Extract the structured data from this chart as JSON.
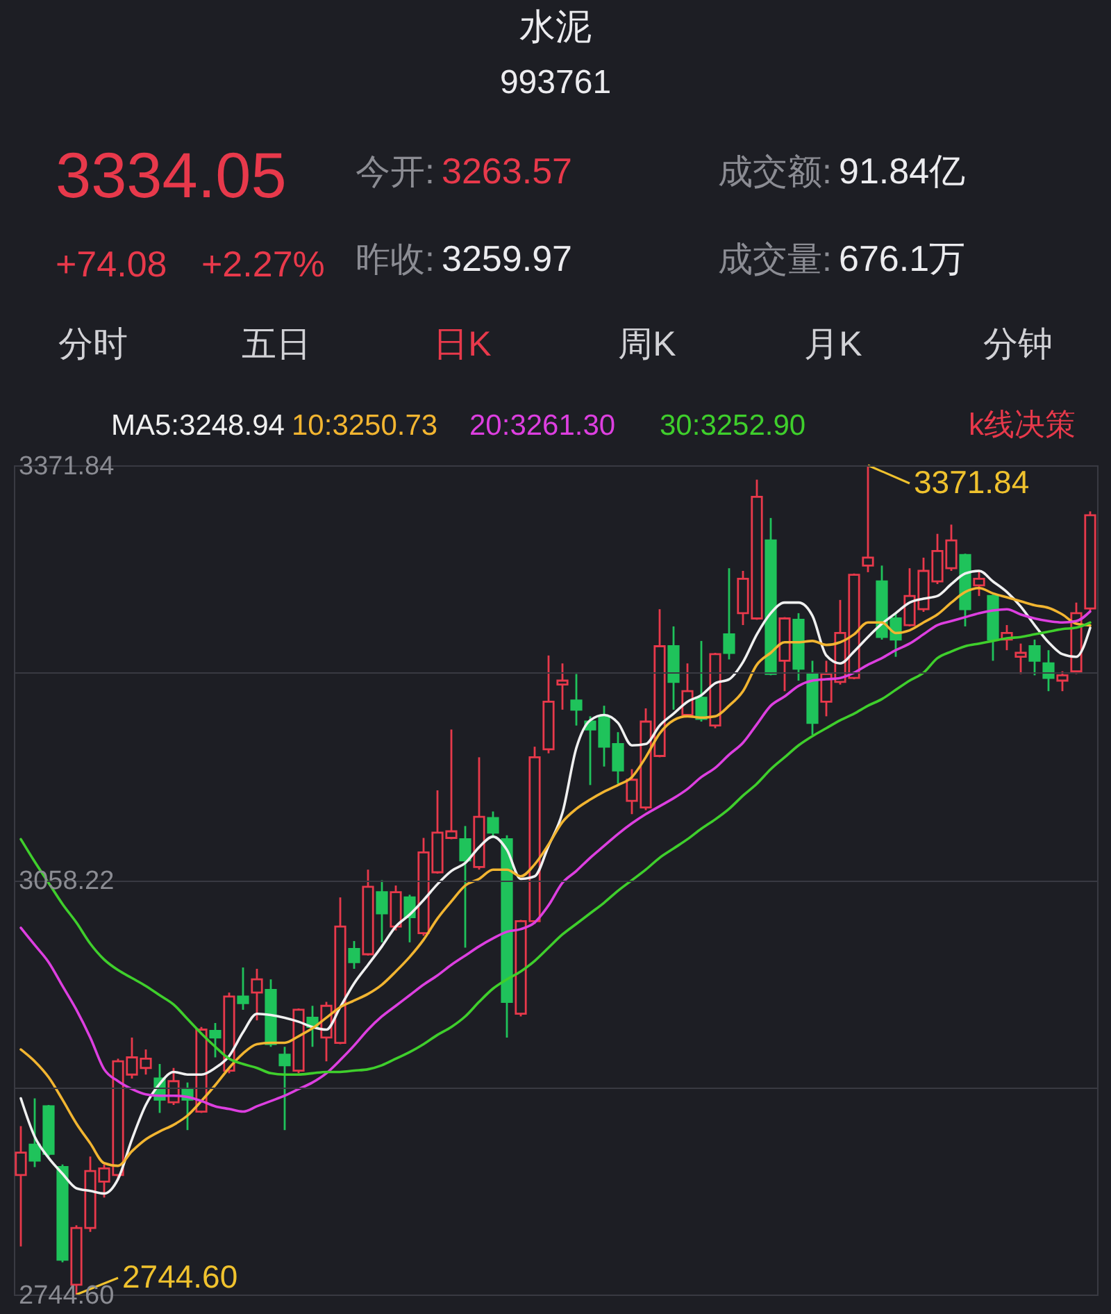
{
  "chart_data": {
    "type": "candlestick",
    "title": "水泥",
    "subtitle": "993761",
    "categories": [
      null,
      null,
      null,
      null,
      null,
      null,
      null,
      null,
      null,
      null,
      null,
      null,
      null,
      null,
      null,
      null,
      null,
      null,
      null,
      null,
      null,
      null,
      null,
      null,
      null,
      null,
      null,
      null,
      null,
      null,
      null,
      null,
      null,
      null,
      null,
      null,
      null,
      null,
      null,
      null,
      null,
      null,
      null,
      null,
      null,
      null,
      null,
      null,
      null,
      null,
      null,
      null,
      null,
      null,
      null,
      null,
      null,
      null,
      null,
      null,
      null,
      null,
      null,
      null,
      null,
      null,
      null,
      null,
      null,
      null,
      null,
      null,
      null,
      null,
      null,
      null,
      null,
      null
    ],
    "ohlc": [
      [
        2835,
        2872,
        2781,
        2852
      ],
      [
        2858,
        2893,
        2841,
        2846
      ],
      [
        2887,
        2888,
        2849,
        2851
      ],
      [
        2841,
        2843,
        2769,
        2771
      ],
      [
        2752,
        2797,
        2744.6,
        2795
      ],
      [
        2795,
        2849,
        2792,
        2838
      ],
      [
        2830,
        2843,
        2818,
        2840
      ],
      [
        2835,
        2923,
        2831,
        2921
      ],
      [
        2911,
        2939,
        2908,
        2924
      ],
      [
        2916,
        2930,
        2911,
        2923
      ],
      [
        2908,
        2919,
        2882,
        2892
      ],
      [
        2890,
        2916,
        2888,
        2906
      ],
      [
        2900,
        2905,
        2869,
        2892
      ],
      [
        2883,
        2947,
        2882,
        2945
      ],
      [
        2944,
        2950,
        2924,
        2939
      ],
      [
        2914,
        2973,
        2912,
        2970
      ],
      [
        2970,
        2992,
        2960,
        2965
      ],
      [
        2973,
        2991,
        2952,
        2983
      ],
      [
        2975,
        2983,
        2932,
        2934
      ],
      [
        2926,
        2932,
        2869,
        2918
      ],
      [
        2914,
        2961,
        2912,
        2960
      ],
      [
        2954,
        2963,
        2932,
        2947
      ],
      [
        2939,
        2966,
        2921,
        2963
      ],
      [
        2935,
        3045,
        2934,
        3023
      ],
      [
        3006,
        3012,
        2991,
        2996
      ],
      [
        3002,
        3066,
        3001,
        3053
      ],
      [
        3049,
        3058,
        3011,
        3033
      ],
      [
        3023,
        3054,
        3020,
        3049
      ],
      [
        3045,
        3047,
        3011,
        3030
      ],
      [
        3018,
        3090,
        3016,
        3079
      ],
      [
        3064,
        3126,
        3063,
        3094
      ],
      [
        3090,
        3172,
        3089,
        3095
      ],
      [
        3089,
        3099,
        3007,
        3073
      ],
      [
        3068,
        3151,
        3066,
        3106
      ],
      [
        3105,
        3110,
        3090,
        3094
      ],
      [
        3089,
        3092,
        2939,
        2966
      ],
      [
        2957,
        3028,
        2955,
        3027
      ],
      [
        3027,
        3159,
        3025,
        3151
      ],
      [
        3157,
        3228,
        3154,
        3193
      ],
      [
        3206,
        3222,
        3187,
        3209
      ],
      [
        3194,
        3214,
        3175,
        3187
      ],
      [
        3178,
        3182,
        3130,
        3172
      ],
      [
        3182,
        3190,
        3144,
        3159
      ],
      [
        3161,
        3170,
        3131,
        3141
      ],
      [
        3118,
        3142,
        3108,
        3134
      ],
      [
        3113,
        3188,
        3111,
        3178
      ],
      [
        3152,
        3263,
        3151,
        3235
      ],
      [
        3235,
        3250,
        3187,
        3208
      ],
      [
        3183,
        3222,
        3182,
        3201
      ],
      [
        3196,
        3239,
        3178,
        3180
      ],
      [
        3175,
        3230,
        3173,
        3229
      ],
      [
        3244,
        3294,
        3225,
        3230
      ],
      [
        3260,
        3292,
        3251,
        3286
      ],
      [
        3256,
        3361,
        3255,
        3348
      ],
      [
        3315,
        3332,
        3213,
        3214
      ],
      [
        3224,
        3257,
        3201,
        3256
      ],
      [
        3255,
        3260,
        3209,
        3218
      ],
      [
        3214,
        3224,
        3168,
        3177
      ],
      [
        3193,
        3224,
        3182,
        3214
      ],
      [
        3208,
        3270,
        3206,
        3245
      ],
      [
        3211,
        3290,
        3210,
        3289
      ],
      [
        3296,
        3371.84,
        3291,
        3302
      ],
      [
        3284,
        3296,
        3240,
        3242
      ],
      [
        3256,
        3260,
        3227,
        3240
      ],
      [
        3251,
        3294,
        3250,
        3273
      ],
      [
        3263,
        3302,
        3261,
        3292
      ],
      [
        3284,
        3320,
        3282,
        3307
      ],
      [
        3294,
        3327,
        3292,
        3315
      ],
      [
        3304,
        3305,
        3250,
        3263
      ],
      [
        3281,
        3292,
        3273,
        3286
      ],
      [
        3273,
        3274,
        3224,
        3240
      ],
      [
        3240,
        3251,
        3232,
        3245
      ],
      [
        3227,
        3237,
        3214,
        3230
      ],
      [
        3235,
        3240,
        3213,
        3224
      ],
      [
        3222,
        3232,
        3201,
        3211
      ],
      [
        3209,
        3216,
        3201,
        3213
      ],
      [
        3216,
        3268,
        3214,
        3260
      ],
      [
        3263.57,
        3337,
        3262,
        3334.05
      ]
    ],
    "colors": [
      "#e8394b",
      "#1fc35b",
      "#1fc35b",
      "#1fc35b",
      "#e8394b",
      "#e8394b",
      "#e8394b",
      "#e8394b",
      "#e8394b",
      "#e8394b",
      "#1fc35b",
      "#e8394b",
      "#1fc35b",
      "#e8394b",
      "#1fc35b",
      "#e8394b",
      "#1fc35b",
      "#e8394b",
      "#1fc35b",
      "#1fc35b",
      "#e8394b",
      "#1fc35b",
      "#e8394b",
      "#e8394b",
      "#1fc35b",
      "#e8394b",
      "#1fc35b",
      "#e8394b",
      "#1fc35b",
      "#e8394b",
      "#e8394b",
      "#e8394b",
      "#1fc35b",
      "#e8394b",
      "#1fc35b",
      "#1fc35b",
      "#e8394b",
      "#e8394b",
      "#e8394b",
      "#e8394b",
      "#1fc35b",
      "#1fc35b",
      "#1fc35b",
      "#1fc35b",
      "#e8394b",
      "#e8394b",
      "#e8394b",
      "#1fc35b",
      "#e8394b",
      "#1fc35b",
      "#e8394b",
      "#1fc35b",
      "#e8394b",
      "#e8394b",
      "#1fc35b",
      "#e8394b",
      "#1fc35b",
      "#1fc35b",
      "#e8394b",
      "#e8394b",
      "#e8394b",
      "#e8394b",
      "#1fc35b",
      "#1fc35b",
      "#e8394b",
      "#e8394b",
      "#e8394b",
      "#e8394b",
      "#1fc35b",
      "#e8394b",
      "#1fc35b",
      "#e8394b",
      "#e8394b",
      "#1fc35b",
      "#1fc35b",
      "#e8394b",
      "#e8394b",
      "#e8394b"
    ],
    "series": [
      {
        "name": "MA5:3248.94",
        "type": "line",
        "color": "#f0f0f0",
        "values": [
          2893,
          2864,
          2848,
          2836,
          2825,
          2823,
          2821,
          2832,
          2862,
          2888,
          2904,
          2913,
          2911,
          2911,
          2916,
          2925,
          2943,
          2957,
          2956,
          2954,
          2951,
          2947,
          2945,
          2962,
          2980,
          2994,
          3008,
          3023,
          3032,
          3043,
          3055,
          3065,
          3071,
          3083,
          3091,
          3081,
          3059,
          3061,
          3084,
          3109,
          3158,
          3179,
          3183,
          3177,
          3160,
          3161,
          3175,
          3184,
          3193,
          3198,
          3207,
          3210,
          3223,
          3244,
          3260,
          3268,
          3268,
          3258,
          3228,
          3222,
          3231,
          3242,
          3252,
          3260,
          3268,
          3271,
          3273,
          3282,
          3290,
          3292,
          3284,
          3276,
          3265,
          3251,
          3238,
          3229,
          3227,
          3248.94
        ]
      },
      {
        "name": "10:3250.73",
        "type": "line",
        "color": "#f2b531",
        "values": [
          2930,
          2921,
          2909,
          2892,
          2874,
          2859,
          2844,
          2842,
          2853,
          2862,
          2868,
          2873,
          2880,
          2891,
          2903,
          2916,
          2927,
          2934,
          2935,
          2935,
          2940,
          2946,
          2954,
          2962,
          2967,
          2972,
          2979,
          2989,
          3000,
          3013,
          3029,
          3042,
          3054,
          3059,
          3066,
          3066,
          3061,
          3070,
          3085,
          3102,
          3112,
          3119,
          3125,
          3130,
          3136,
          3151,
          3169,
          3179,
          3182,
          3181,
          3182,
          3190,
          3201,
          3221,
          3230,
          3238,
          3238,
          3239,
          3236,
          3238,
          3244,
          3253,
          3253,
          3245,
          3247,
          3253,
          3259,
          3268,
          3276,
          3279,
          3275,
          3272,
          3269,
          3266,
          3264,
          3259,
          3252,
          3250.73
        ]
      },
      {
        "name": "20:3261.30",
        "type": "line",
        "color": "#dd3fe0",
        "values": [
          3022,
          3009,
          2996,
          2978,
          2960,
          2939,
          2915,
          2906,
          2900,
          2896,
          2895,
          2895,
          2894,
          2891,
          2887,
          2885,
          2883,
          2887,
          2891,
          2895,
          2900,
          2905,
          2912,
          2922,
          2933,
          2945,
          2955,
          2963,
          2971,
          2979,
          2986,
          2994,
          3001,
          3008,
          3014,
          3019,
          3021,
          3026,
          3039,
          3056,
          3065,
          3075,
          3084,
          3093,
          3101,
          3108,
          3114,
          3120,
          3127,
          3136,
          3143,
          3153,
          3162,
          3176,
          3190,
          3197,
          3205,
          3209,
          3210,
          3211,
          3215,
          3221,
          3226,
          3232,
          3237,
          3244,
          3251,
          3254,
          3257,
          3260,
          3262,
          3263,
          3259,
          3256,
          3254,
          3253,
          3254,
          3261.3
        ]
      },
      {
        "name": "30:3252.90",
        "type": "line",
        "color": "#3fcf2c",
        "values": [
          3089,
          3072,
          3056,
          3040,
          3026,
          3010,
          2998,
          2990,
          2984,
          2978,
          2971,
          2964,
          2953,
          2942,
          2932,
          2923,
          2919,
          2916,
          2912,
          2911,
          2911,
          2912,
          2913,
          2913,
          2914,
          2915,
          2918,
          2923,
          2928,
          2934,
          2941,
          2947,
          2955,
          2966,
          2976,
          2983,
          2989,
          2997,
          3007,
          3017,
          3025,
          3033,
          3041,
          3050,
          3058,
          3066,
          3075,
          3082,
          3089,
          3097,
          3104,
          3112,
          3122,
          3131,
          3142,
          3151,
          3160,
          3167,
          3173,
          3179,
          3184,
          3190,
          3195,
          3202,
          3209,
          3215,
          3226,
          3231,
          3235,
          3237,
          3239,
          3241,
          3242,
          3244,
          3246,
          3248,
          3249,
          3252.9
        ]
      }
    ],
    "ylim": [
      2744.6,
      3371.84
    ],
    "yticks": [
      {
        "value": 2744.6,
        "label": "2744.60"
      },
      {
        "value": 2901.41,
        "label": null
      },
      3058.22,
      {
        "value": 3215.03,
        "label": null
      },
      3371.84
    ],
    "grid": "y",
    "legend": "top left",
    "tick_labels": "y",
    "annotations": [
      "3334.05",
      "+74.08",
      "+2.27%",
      "今开:",
      "3263.57",
      "昨收:",
      "3259.97",
      "成交额:",
      "91.84亿",
      "成交量:",
      "676.1万",
      "分时",
      "五日",
      "日K",
      "周K",
      "月K",
      "分钟",
      "k线决策",
      "3371.84",
      "2744.60"
    ]
  }
}
